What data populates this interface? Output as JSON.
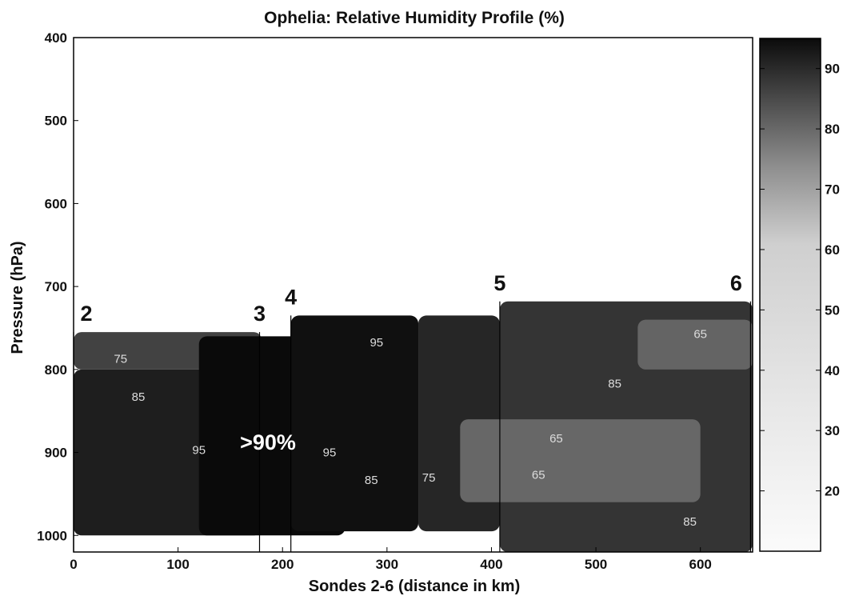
{
  "chart_data": {
    "type": "heatmap",
    "title": "Ophelia: Relative Humidity Profile (%)",
    "xlabel": "Sondes 2-6 (distance in km)",
    "ylabel": "Pressure (hPa)",
    "xlim": [
      0,
      650
    ],
    "ylim": [
      1020,
      400
    ],
    "x_ticks": [
      "0",
      "100",
      "200",
      "300",
      "400",
      "500",
      "600"
    ],
    "x_tick_values": [
      0,
      100,
      200,
      300,
      400,
      500,
      600
    ],
    "y_ticks": [
      "400",
      "500",
      "600",
      "700",
      "800",
      "900",
      "1000"
    ],
    "y_tick_values": [
      400,
      500,
      600,
      700,
      800,
      900,
      1000
    ],
    "colorbar": {
      "range": [
        10,
        95
      ],
      "ticks": [
        "20",
        "30",
        "40",
        "50",
        "60",
        "70",
        "80",
        "90"
      ],
      "tick_values": [
        20,
        30,
        40,
        50,
        60,
        70,
        80,
        90
      ]
    },
    "sondes": [
      {
        "label": "2",
        "x": 0,
        "top_pressure": 755
      },
      {
        "label": "3",
        "x": 178,
        "top_pressure": 755
      },
      {
        "label": "4",
        "x": 208,
        "top_pressure": 735
      },
      {
        "label": "5",
        "x": 408,
        "top_pressure": 718
      },
      {
        "label": "6",
        "x": 648,
        "top_pressure": 718
      }
    ],
    "annotation": ">90%",
    "contour_labels": [
      {
        "text": "75",
        "x": 45,
        "p": 792
      },
      {
        "text": "85",
        "x": 62,
        "p": 838
      },
      {
        "text": "95",
        "x": 120,
        "p": 902
      },
      {
        "text": "95",
        "x": 245,
        "p": 905
      },
      {
        "text": "95",
        "x": 290,
        "p": 772
      },
      {
        "text": "85",
        "x": 285,
        "p": 938
      },
      {
        "text": "75",
        "x": 340,
        "p": 935
      },
      {
        "text": "65",
        "x": 462,
        "p": 888
      },
      {
        "text": "65",
        "x": 445,
        "p": 932
      },
      {
        "text": "85",
        "x": 518,
        "p": 822
      },
      {
        "text": "65",
        "x": 600,
        "p": 762
      },
      {
        "text": "85",
        "x": 590,
        "p": 988
      }
    ],
    "regions": [
      {
        "name": "surface-layer-2-3",
        "level": 88,
        "x0": 0,
        "x1": 180,
        "p_top": 800,
        "p_bottom": 1000
      },
      {
        "name": "upper-layer-2-3",
        "level": 75,
        "x0": 0,
        "x1": 180,
        "p_top": 755,
        "p_bottom": 800
      },
      {
        "name": "core-3-4",
        "level": 95,
        "x0": 120,
        "x1": 260,
        "p_top": 760,
        "p_bottom": 1000
      },
      {
        "name": "core-4-5",
        "level": 93,
        "x0": 208,
        "x1": 330,
        "p_top": 735,
        "p_bottom": 995
      },
      {
        "name": "transition-4-5",
        "level": 85,
        "x0": 330,
        "x1": 408,
        "p_top": 735,
        "p_bottom": 995
      },
      {
        "name": "mid-5-6",
        "level": 80,
        "x0": 408,
        "x1": 650,
        "p_top": 718,
        "p_bottom": 1020
      },
      {
        "name": "dry-upper-5-6",
        "level": 63,
        "x0": 540,
        "x1": 650,
        "p_top": 740,
        "p_bottom": 800
      },
      {
        "name": "dry-lower-5-6",
        "level": 62,
        "x0": 370,
        "x1": 600,
        "p_top": 860,
        "p_bottom": 960
      }
    ]
  }
}
